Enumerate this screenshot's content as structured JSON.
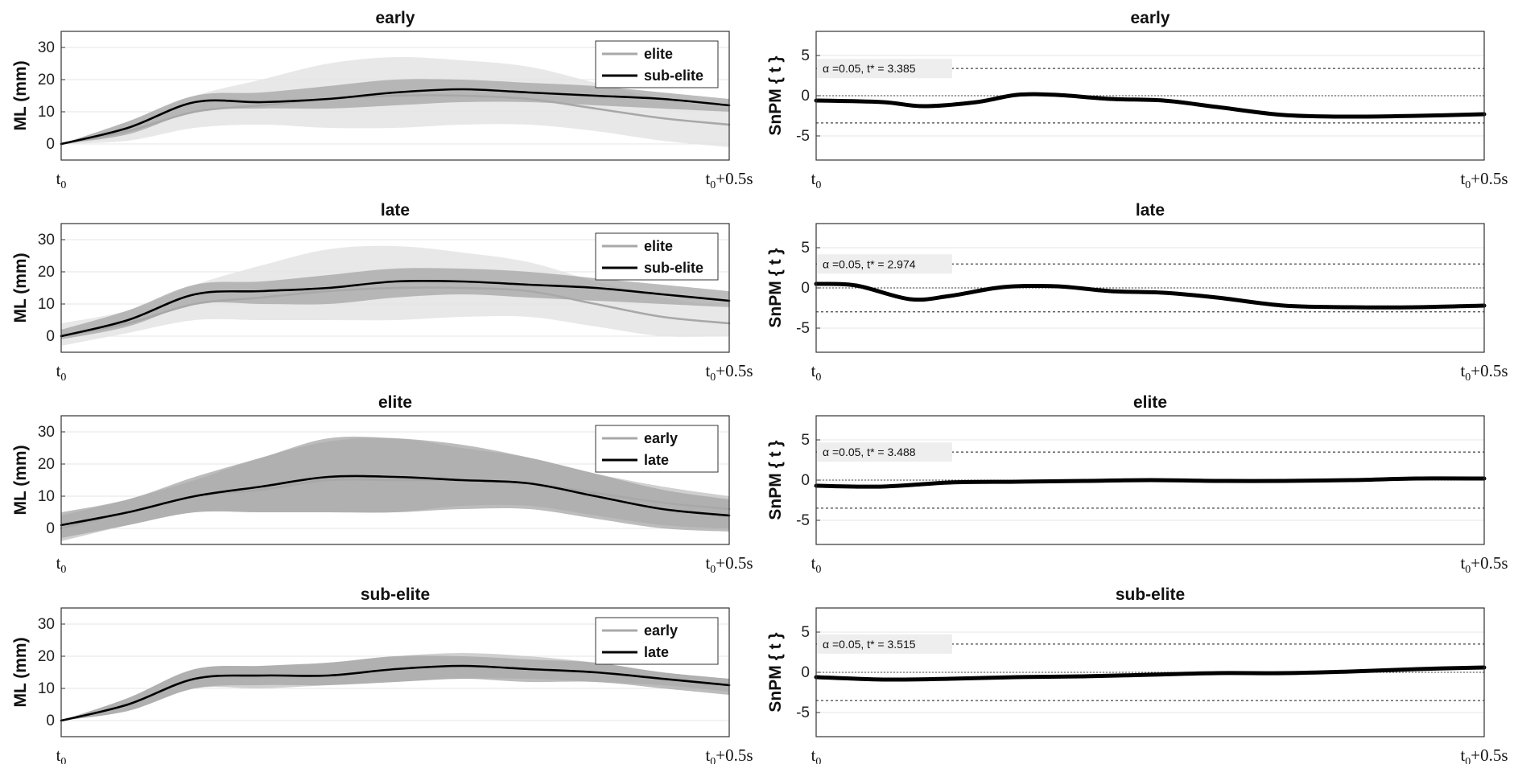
{
  "chart_data": [
    {
      "type": "line",
      "title": "early",
      "ylabel": "ML (mm)",
      "yticks": [
        0,
        10,
        20,
        30
      ],
      "ylim": [
        -5,
        35
      ],
      "xticklabels": [
        "t0",
        "t0+0.5s"
      ],
      "x": [
        0,
        0.05,
        0.1,
        0.15,
        0.2,
        0.25,
        0.3,
        0.35,
        0.4,
        0.45,
        0.5
      ],
      "legend": "top-right",
      "series": [
        {
          "name": "elite",
          "color": "#a8a8a8",
          "values": [
            0,
            4,
            10,
            12,
            14,
            15,
            15,
            14,
            11,
            8,
            6
          ],
          "band_lower": [
            0,
            1,
            5,
            6,
            5,
            5,
            6,
            6,
            4,
            1,
            -1
          ],
          "band_upper": [
            0,
            7,
            15,
            20,
            25,
            27,
            26,
            24,
            19,
            14,
            11
          ],
          "band_color": "#e4e4e4"
        },
        {
          "name": "sub-elite",
          "color": "#000000",
          "values": [
            0,
            5,
            13,
            13,
            14,
            16,
            17,
            16,
            15,
            14,
            12
          ],
          "band_lower": [
            0,
            3,
            10,
            11,
            11,
            12,
            13,
            13,
            12,
            11,
            10
          ],
          "band_upper": [
            0,
            7,
            15,
            16,
            18,
            20,
            20,
            19,
            18,
            16,
            14
          ],
          "band_color": "#a6a6a6"
        }
      ]
    },
    {
      "type": "line",
      "title": "early",
      "ylabel": "SnPM { t }",
      "yticks": [
        -5,
        0,
        5
      ],
      "ylim": [
        -8,
        8
      ],
      "xticklabels": [
        "t0",
        "t0+0.5s"
      ],
      "annotation": "α =0.05,    t* = 3.385",
      "threshold": 3.385,
      "x": [
        0,
        0.05,
        0.08,
        0.12,
        0.15,
        0.18,
        0.22,
        0.26,
        0.3,
        0.35,
        0.4,
        0.45,
        0.5
      ],
      "series": [
        {
          "name": "",
          "color": "#000000",
          "values": [
            -0.6,
            -0.8,
            -1.3,
            -0.8,
            0.1,
            0.1,
            -0.4,
            -0.6,
            -1.4,
            -2.4,
            -2.6,
            -2.5,
            -2.3
          ]
        }
      ]
    },
    {
      "type": "line",
      "title": "late",
      "ylabel": "ML (mm)",
      "yticks": [
        0,
        10,
        20,
        30
      ],
      "ylim": [
        -5,
        35
      ],
      "xticklabels": [
        "t0",
        "t0+0.5s"
      ],
      "legend": "top-right",
      "x": [
        0,
        0.05,
        0.1,
        0.15,
        0.2,
        0.25,
        0.3,
        0.35,
        0.4,
        0.45,
        0.5
      ],
      "series": [
        {
          "name": "elite",
          "color": "#a8a8a8",
          "values": [
            0,
            4,
            10,
            12,
            14,
            15,
            15,
            14,
            10,
            6,
            4
          ],
          "band_lower": [
            -3,
            1,
            5,
            5,
            5,
            5,
            6,
            6,
            3,
            0,
            0
          ],
          "band_upper": [
            4,
            8,
            16,
            22,
            27,
            28,
            26,
            23,
            17,
            12,
            9
          ],
          "band_color": "#e4e4e4"
        },
        {
          "name": "sub-elite",
          "color": "#000000",
          "values": [
            0,
            5,
            13,
            14,
            15,
            17,
            17,
            16,
            15,
            13,
            11
          ],
          "band_lower": [
            -1,
            3,
            10,
            10,
            10,
            12,
            13,
            12,
            11,
            10,
            9
          ],
          "band_upper": [
            2,
            8,
            16,
            17,
            19,
            21,
            21,
            20,
            18,
            16,
            14
          ],
          "band_color": "#a6a6a6"
        }
      ]
    },
    {
      "type": "line",
      "title": "late",
      "ylabel": "SnPM { t }",
      "yticks": [
        -5,
        0,
        5
      ],
      "ylim": [
        -8,
        8
      ],
      "xticklabels": [
        "t0",
        "t0+0.5s"
      ],
      "annotation": "α =0.05,    t* = 2.974",
      "threshold": 2.974,
      "x": [
        0,
        0.03,
        0.07,
        0.1,
        0.14,
        0.18,
        0.22,
        0.26,
        0.3,
        0.35,
        0.4,
        0.45,
        0.5
      ],
      "series": [
        {
          "name": "",
          "color": "#000000",
          "values": [
            0.5,
            0.3,
            -1.4,
            -1.0,
            0.1,
            0.2,
            -0.4,
            -0.6,
            -1.2,
            -2.2,
            -2.4,
            -2.4,
            -2.2
          ]
        }
      ]
    },
    {
      "type": "line",
      "title": "elite",
      "ylabel": "ML (mm)",
      "yticks": [
        0,
        10,
        20,
        30
      ],
      "ylim": [
        -5,
        35
      ],
      "xticklabels": [
        "t0",
        "t0+0.5s"
      ],
      "legend": "top-right",
      "x": [
        0,
        0.05,
        0.1,
        0.15,
        0.2,
        0.25,
        0.3,
        0.35,
        0.4,
        0.45,
        0.5
      ],
      "series": [
        {
          "name": "early",
          "color": "#a8a8a8",
          "values": [
            0,
            5,
            10,
            12,
            15,
            15,
            15,
            14,
            11,
            8,
            6
          ],
          "band_lower": [
            -4,
            1,
            5,
            5,
            5,
            5,
            7,
            7,
            4,
            1,
            0
          ],
          "band_upper": [
            4,
            9,
            15,
            22,
            27,
            28,
            25,
            22,
            17,
            13,
            10
          ],
          "band_color": "#c8c8c8"
        },
        {
          "name": "late",
          "color": "#000000",
          "values": [
            1,
            5,
            10,
            13,
            16,
            16,
            15,
            14,
            10,
            6,
            4
          ],
          "band_lower": [
            -3,
            1,
            5,
            5,
            5,
            5,
            6,
            6,
            3,
            0,
            -1
          ],
          "band_upper": [
            5,
            9,
            16,
            22,
            28,
            28,
            26,
            22,
            17,
            12,
            9
          ],
          "band_color": "#a6a6a6"
        }
      ]
    },
    {
      "type": "line",
      "title": "elite",
      "ylabel": "SnPM { t }",
      "yticks": [
        -5,
        0,
        5
      ],
      "ylim": [
        -8,
        8
      ],
      "xticklabels": [
        "t0",
        "t0+0.5s"
      ],
      "annotation": "α =0.05,    t* = 3.488",
      "threshold": 3.488,
      "x": [
        0,
        0.05,
        0.1,
        0.15,
        0.2,
        0.25,
        0.3,
        0.35,
        0.4,
        0.45,
        0.5
      ],
      "series": [
        {
          "name": "",
          "color": "#000000",
          "values": [
            -0.7,
            -0.8,
            -0.3,
            -0.2,
            -0.1,
            0.0,
            -0.1,
            -0.1,
            0.0,
            0.2,
            0.2
          ]
        }
      ]
    },
    {
      "type": "line",
      "title": "sub-elite",
      "ylabel": "ML (mm)",
      "yticks": [
        0,
        10,
        20,
        30
      ],
      "ylim": [
        -5,
        35
      ],
      "xticklabels": [
        "t0",
        "t0+0.5s"
      ],
      "legend": "top-right",
      "x": [
        0,
        0.05,
        0.1,
        0.15,
        0.2,
        0.25,
        0.3,
        0.35,
        0.4,
        0.45,
        0.5
      ],
      "series": [
        {
          "name": "early",
          "color": "#a8a8a8",
          "values": [
            0,
            5,
            13,
            14,
            14,
            16,
            17,
            16,
            15,
            13,
            11
          ],
          "band_lower": [
            0,
            3,
            10,
            10,
            11,
            12,
            13,
            13,
            12,
            11,
            9
          ],
          "band_upper": [
            0,
            7,
            16,
            17,
            18,
            20,
            21,
            20,
            18,
            15,
            13
          ],
          "band_color": "#c8c8c8"
        },
        {
          "name": "late",
          "color": "#000000",
          "values": [
            0,
            5,
            13,
            14,
            14,
            16,
            17,
            16,
            15,
            13,
            11
          ],
          "band_lower": [
            0,
            3,
            10,
            11,
            11,
            12,
            13,
            12,
            12,
            10,
            8
          ],
          "band_upper": [
            0,
            7,
            16,
            17,
            18,
            20,
            20,
            19,
            18,
            15,
            13
          ],
          "band_color": "#a6a6a6"
        }
      ]
    },
    {
      "type": "line",
      "title": "sub-elite",
      "ylabel": "SnPM { t }",
      "yticks": [
        -5,
        0,
        5
      ],
      "ylim": [
        -8,
        8
      ],
      "xticklabels": [
        "t0",
        "t0+0.5s"
      ],
      "annotation": "α =0.05,    t* = 3.515",
      "threshold": 3.515,
      "x": [
        0,
        0.05,
        0.1,
        0.15,
        0.2,
        0.25,
        0.3,
        0.35,
        0.4,
        0.45,
        0.5
      ],
      "series": [
        {
          "name": "",
          "color": "#000000",
          "values": [
            -0.6,
            -0.9,
            -0.8,
            -0.6,
            -0.5,
            -0.3,
            -0.1,
            -0.1,
            0.1,
            0.4,
            0.6
          ]
        }
      ]
    }
  ]
}
